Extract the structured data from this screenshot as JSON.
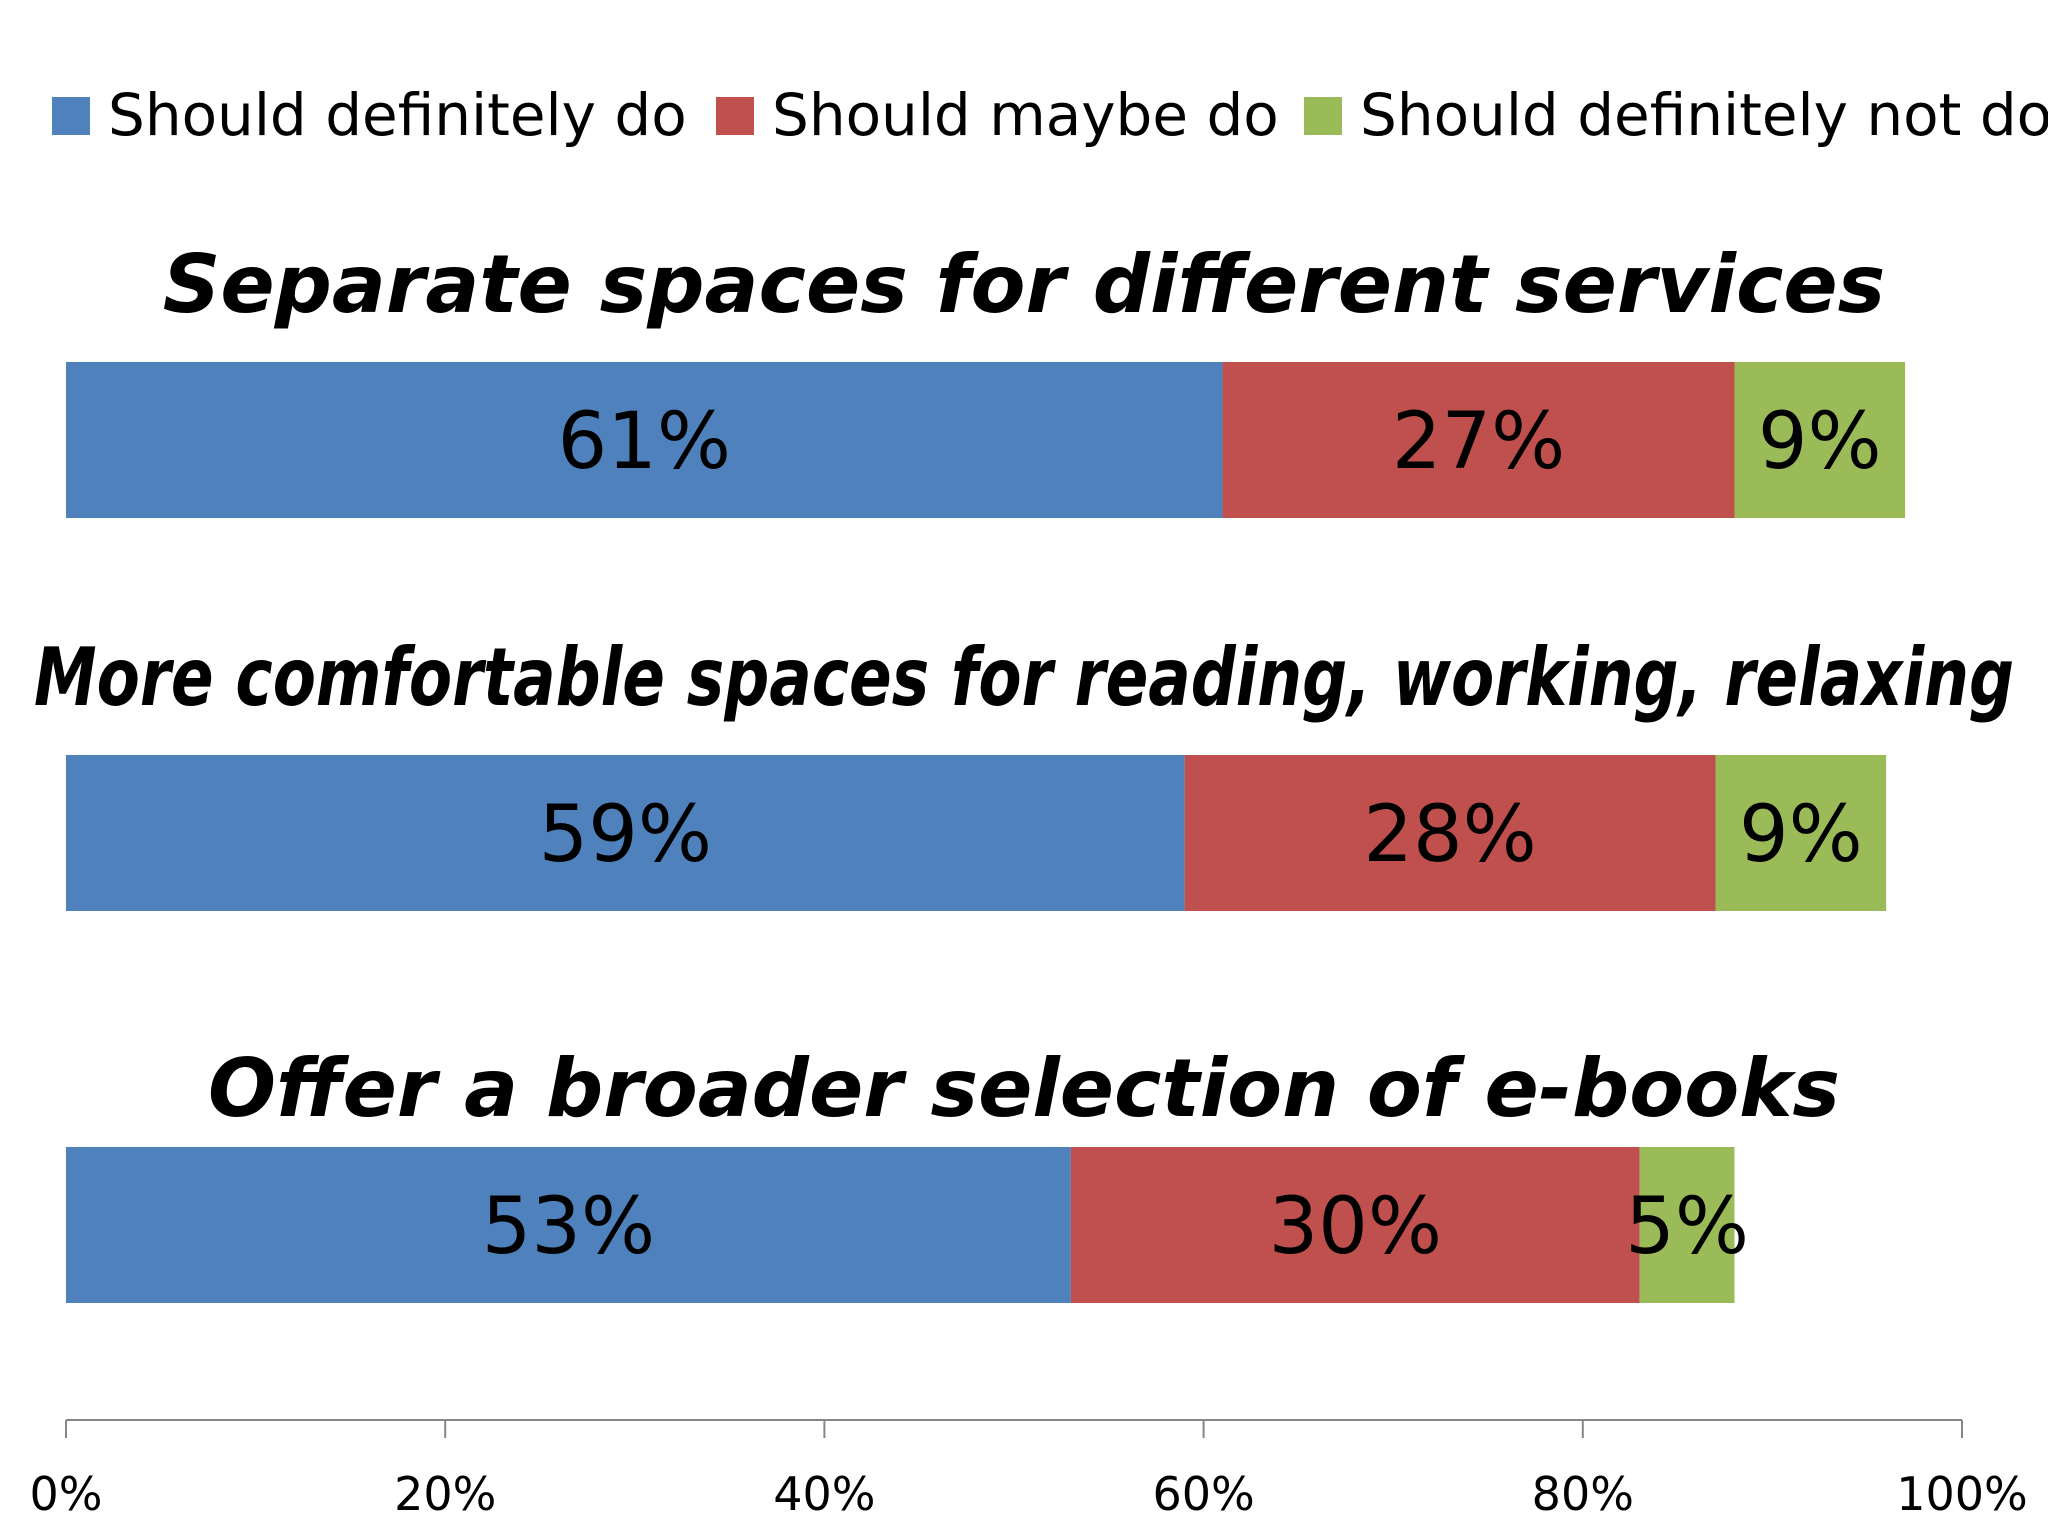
{
  "chart_data": {
    "type": "bar",
    "orientation": "horizontal",
    "stacked": true,
    "legend_position": "top",
    "grid": false,
    "xlim": [
      0,
      100
    ],
    "x_ticks": [
      "0%",
      "20%",
      "40%",
      "60%",
      "80%",
      "100%"
    ],
    "x_tick_values": [
      0,
      20,
      40,
      60,
      80,
      100
    ],
    "categories": [
      "Separate spaces for different services",
      "More comfortable spaces for reading, working, relaxing",
      "Offer a broader selection of e-books"
    ],
    "series": [
      {
        "name": "Should definitely do",
        "color": "#4F81BD",
        "values": [
          61,
          59,
          53
        ],
        "labels": [
          "61%",
          "59%",
          "53%"
        ]
      },
      {
        "name": "Should maybe do",
        "color": "#C0504D",
        "values": [
          27,
          28,
          30
        ],
        "labels": [
          "27%",
          "28%",
          "30%"
        ]
      },
      {
        "name": "Should definitely not do",
        "color": "#9BBB59",
        "values": [
          9,
          9,
          5
        ],
        "labels": [
          "9%",
          "9%",
          "5%"
        ]
      }
    ]
  }
}
